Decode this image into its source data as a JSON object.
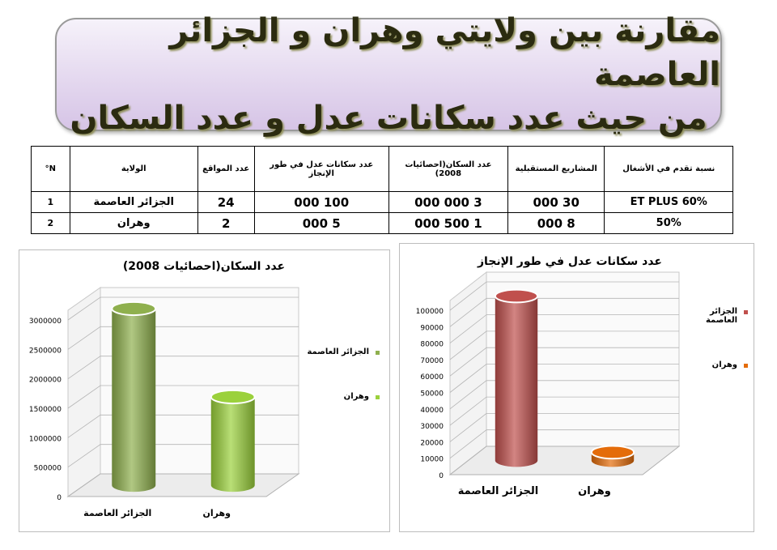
{
  "header": {
    "title_lines": [
      "مقارنة بين ولايتي وهران و الجزائر العاصمة",
      "من حيث عدد سكانات عدل و عدد السكان"
    ]
  },
  "table": {
    "columns": [
      "N°",
      "الولاية",
      "عدد المواقع",
      "عدد سكانات عدل في طور الإنجاز",
      "عدد السكان(احصائيات 2008)",
      "المشاريع المستقبلية",
      "نسبة تقدم في الأشغال"
    ],
    "rows": [
      [
        "1",
        "الجزائر العاصمة",
        "24",
        "100 000",
        "3 000 000",
        "30 000",
        "60% ET PLUS"
      ],
      [
        "2",
        "وهران",
        "2",
        "5 000",
        "1 500 000",
        "8 000",
        "50%"
      ]
    ]
  },
  "chart_data": [
    {
      "type": "bar",
      "shape": "cylinder",
      "title": "عدد السكان(احصائيات 2008)",
      "categories": [
        "الجزائر العاصمة",
        "وهران"
      ],
      "values": [
        3000000,
        1500000
      ],
      "colors": [
        "#8fb04e",
        "#9bd13c"
      ],
      "ylim": [
        0,
        3000000
      ],
      "yticks": [
        0,
        500000,
        1000000,
        1500000,
        2000000,
        2500000,
        3000000
      ],
      "grid": true,
      "legend": "right"
    },
    {
      "type": "bar",
      "shape": "cylinder",
      "title": "عدد سكانات عدل في طور الإنجاز",
      "categories": [
        "الجزائر العاصمة",
        "وهران"
      ],
      "values": [
        100000,
        5000
      ],
      "colors": [
        "#c0504d",
        "#e46c0a"
      ],
      "ylim": [
        0,
        100000
      ],
      "yticks": [
        0,
        10000,
        20000,
        30000,
        40000,
        50000,
        60000,
        70000,
        80000,
        90000,
        100000
      ],
      "grid": true,
      "legend": "right"
    }
  ]
}
